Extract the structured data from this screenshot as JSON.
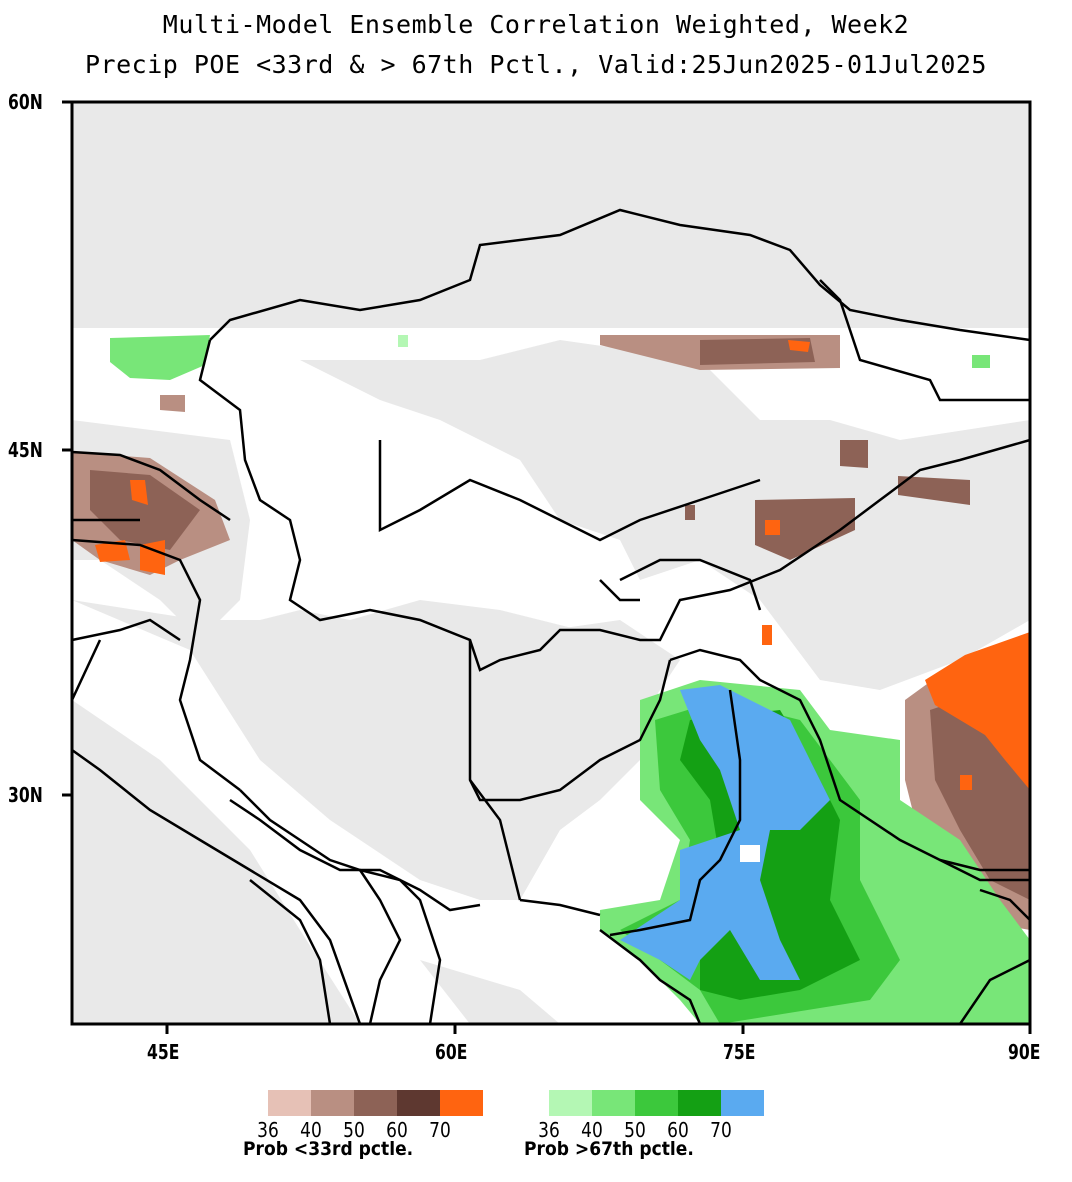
{
  "title": {
    "line1": "Multi-Model Ensemble Correlation Weighted, Week2",
    "line2": "Precip POE <33rd & > 67th Pctl., Valid:25Jun2025-01Jul2025"
  },
  "axes": {
    "lat_labels": [
      "60N",
      "45N",
      "30N"
    ],
    "lon_labels": [
      "45E",
      "60E",
      "75E",
      "90E"
    ],
    "lat_range": [
      18,
      60
    ],
    "lon_range": [
      40,
      90
    ]
  },
  "legend_below": {
    "ticks": [
      "36",
      "40",
      "50",
      "60",
      "70"
    ],
    "caption": "Prob <33rd pctle.",
    "colors": [
      "#e6c1b6",
      "#b98f82",
      "#8d6256",
      "#5e3830",
      "#ff6410"
    ]
  },
  "legend_above": {
    "ticks": [
      "36",
      "40",
      "50",
      "60",
      "70"
    ],
    "caption": "Prob >67th pctle.",
    "colors": [
      "#b4f7b4",
      "#78e678",
      "#3cc83c",
      "#14a014",
      "#5aaaf0"
    ]
  },
  "colors": {
    "no_data": "#e9e9e9",
    "background": "#ffffff",
    "border": "#000000"
  }
}
